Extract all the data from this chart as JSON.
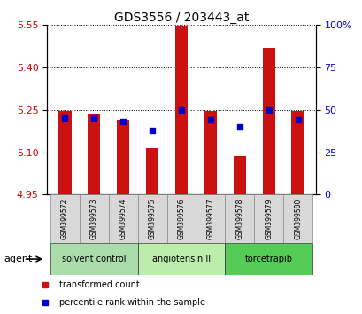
{
  "title": "GDS3556 / 203443_at",
  "samples": [
    "GSM399572",
    "GSM399573",
    "GSM399574",
    "GSM399575",
    "GSM399576",
    "GSM399577",
    "GSM399578",
    "GSM399579",
    "GSM399580"
  ],
  "transformed_count": [
    5.245,
    5.235,
    5.215,
    5.115,
    5.548,
    5.245,
    5.085,
    5.47,
    5.245
  ],
  "percentile_rank": [
    45,
    45,
    43,
    38,
    50,
    44,
    40,
    50,
    44
  ],
  "y_min": 4.95,
  "y_max": 5.55,
  "y_ticks_left": [
    4.95,
    5.1,
    5.25,
    5.4,
    5.55
  ],
  "y_ticks_right": [
    0,
    25,
    50,
    75,
    100
  ],
  "bar_color": "#cc1111",
  "dot_color": "#0000cc",
  "group_labels": [
    "solvent control",
    "angiotensin II",
    "torcetrapib"
  ],
  "group_colors": [
    "#aaddaa",
    "#bbeeaa",
    "#55cc55"
  ],
  "group_ranges": [
    [
      0,
      3
    ],
    [
      3,
      6
    ],
    [
      6,
      9
    ]
  ],
  "agent_label": "agent",
  "legend_bar_label": "transformed count",
  "legend_dot_label": "percentile rank within the sample",
  "background_color": "#ffffff",
  "plot_bg_color": "#ffffff",
  "label_color_left": "#cc0000",
  "label_color_right": "#0000cc"
}
